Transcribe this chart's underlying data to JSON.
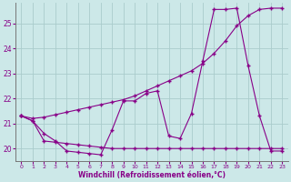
{
  "xlabel": "Windchill (Refroidissement éolien,°C)",
  "background_color": "#cce8e8",
  "grid_color": "#aacccc",
  "line_color": "#880088",
  "ylim": [
    19.5,
    25.8
  ],
  "xlim": [
    -0.5,
    23.5
  ],
  "yticks": [
    20,
    21,
    22,
    23,
    24,
    25
  ],
  "xticks": [
    0,
    1,
    2,
    3,
    4,
    5,
    6,
    7,
    8,
    9,
    10,
    11,
    12,
    13,
    14,
    15,
    16,
    17,
    18,
    19,
    20,
    21,
    22,
    23
  ],
  "series1_x": [
    0,
    1,
    2,
    3,
    4,
    5,
    6,
    7,
    8,
    9,
    10,
    11,
    12,
    13,
    14,
    15,
    16,
    17,
    18,
    19,
    20,
    21,
    22,
    23
  ],
  "series1_y": [
    21.3,
    21.1,
    20.6,
    20.3,
    19.9,
    19.85,
    19.8,
    19.75,
    20.75,
    21.9,
    21.9,
    22.2,
    22.3,
    20.5,
    20.4,
    21.4,
    23.5,
    25.55,
    25.55,
    25.6,
    23.3,
    21.3,
    19.9,
    19.9
  ],
  "series2_x": [
    0,
    1,
    2,
    3,
    4,
    5,
    6,
    7,
    8,
    9,
    10,
    11,
    12,
    13,
    14,
    15,
    16,
    17,
    18,
    19,
    20,
    21,
    22,
    23
  ],
  "series2_y": [
    21.3,
    21.1,
    20.3,
    20.25,
    20.2,
    20.15,
    20.1,
    20.05,
    20.0,
    20.0,
    20.0,
    20.0,
    20.0,
    20.0,
    20.0,
    20.0,
    20.0,
    20.0,
    20.0,
    20.0,
    20.0,
    20.0,
    20.0,
    20.0
  ],
  "series3_x": [
    0,
    1,
    2,
    3,
    4,
    5,
    6,
    7,
    8,
    9,
    10,
    11,
    12,
    13,
    14,
    15,
    16,
    17,
    18,
    19,
    20,
    21,
    22,
    23
  ],
  "series3_y": [
    21.3,
    21.2,
    21.25,
    21.35,
    21.45,
    21.55,
    21.65,
    21.75,
    21.85,
    21.95,
    22.1,
    22.3,
    22.5,
    22.7,
    22.9,
    23.1,
    23.4,
    23.8,
    24.3,
    24.9,
    25.3,
    25.55,
    25.6,
    25.6
  ]
}
